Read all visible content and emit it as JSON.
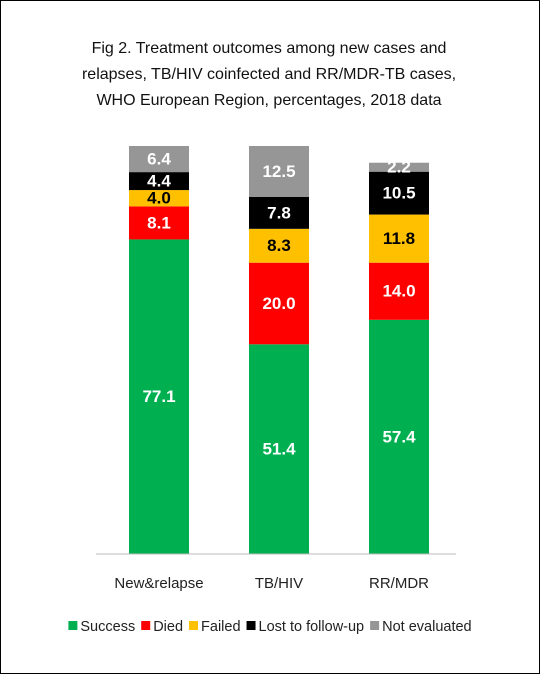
{
  "chart_data": {
    "type": "stacked_bar",
    "title": [
      "Fig 2. Treatment outcomes among new cases and",
      "relapses, TB/HIV coinfected and RR/MDR-TB cases,",
      "WHO European Region, percentages, 2018 data"
    ],
    "categories": [
      "New&relapse",
      "TB/HIV",
      "RR/MDR"
    ],
    "series": [
      {
        "name": "Success",
        "color": "#00b050",
        "values": [
          77.1,
          51.4,
          57.4
        ],
        "value_labels": [
          "77.1",
          "51.4",
          "57.4"
        ]
      },
      {
        "name": "Died",
        "color": "#ff0000",
        "values": [
          8.1,
          20.0,
          14.0
        ],
        "value_labels": [
          "8.1",
          "20.0",
          "14.0"
        ]
      },
      {
        "name": "Failed",
        "color": "#ffc000",
        "values": [
          4.0,
          8.3,
          11.8
        ],
        "value_labels": [
          "4.0",
          "8.3",
          "11.8"
        ]
      },
      {
        "name": "Lost to follow-up",
        "color": "#000000",
        "values": [
          4.4,
          7.8,
          10.5
        ],
        "value_labels": [
          "4.4",
          "7.8",
          "10.5"
        ]
      },
      {
        "name": "Not evaluated",
        "color": "#969696",
        "values": [
          6.4,
          12.5,
          2.2
        ],
        "value_labels": [
          "6.4",
          "12.5",
          "2.2"
        ]
      }
    ],
    "legend": "bottom"
  }
}
